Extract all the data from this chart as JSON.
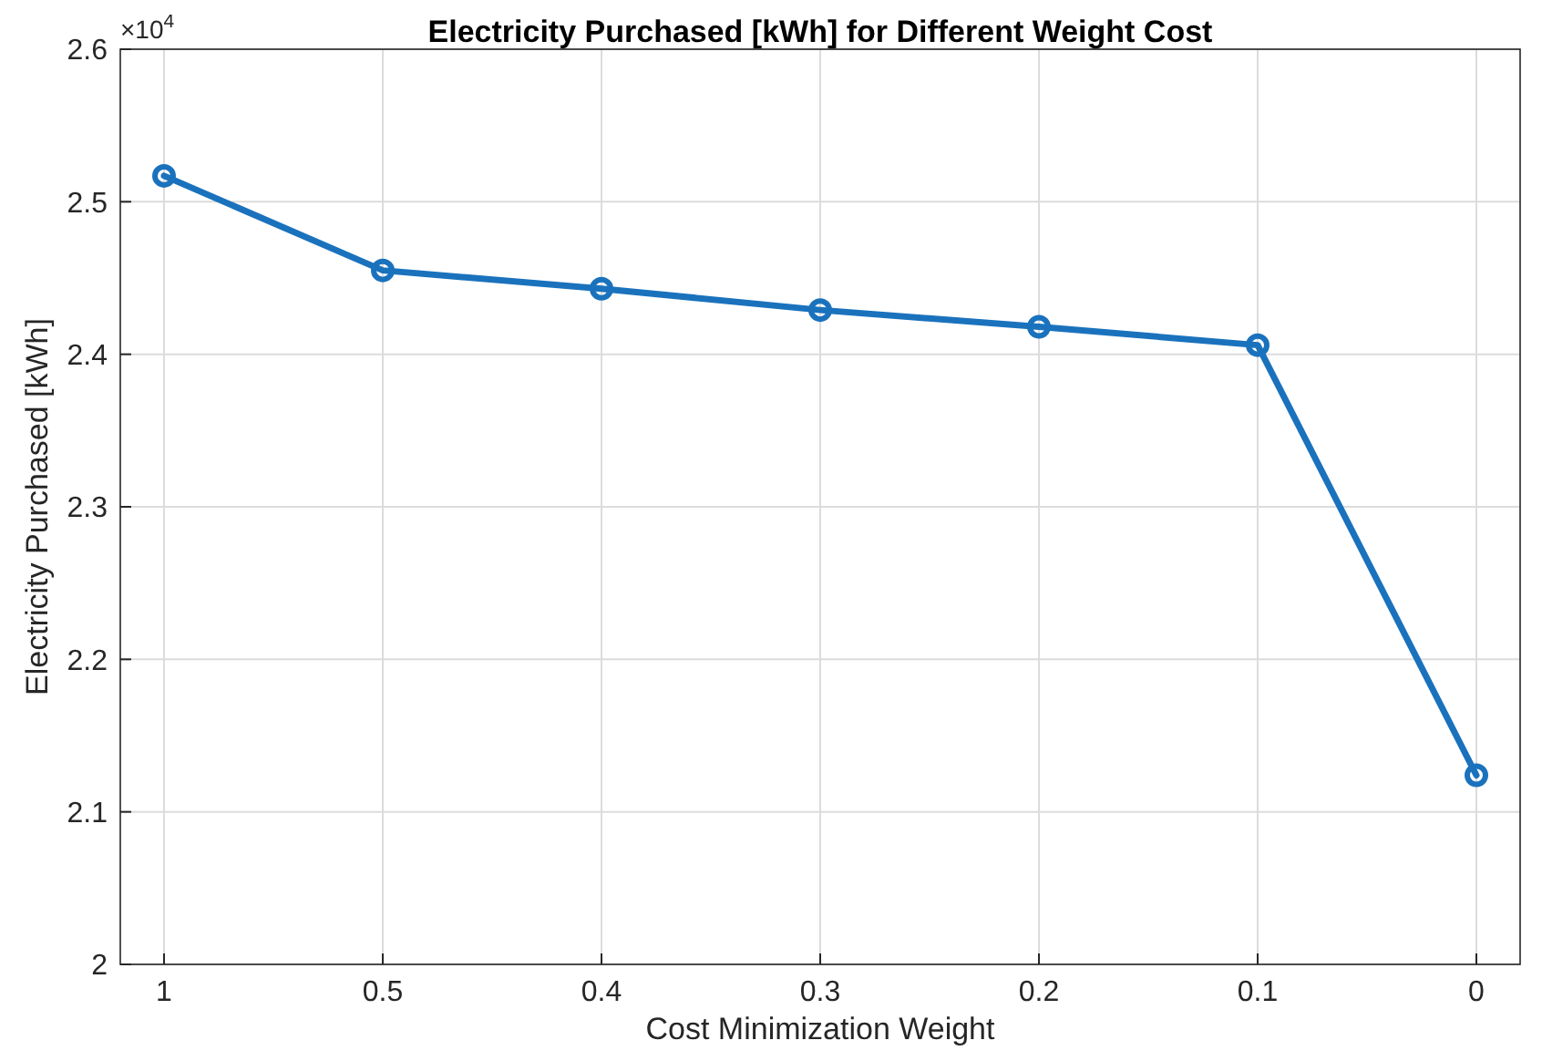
{
  "chart_data": {
    "type": "line",
    "title": "Electricity Purchased [kWh] for Different Weight Cost",
    "xlabel": "Cost Minimization Weight",
    "ylabel": "Electricity Purchased [kWh]",
    "categories": [
      "1",
      "0.5",
      "0.4",
      "0.3",
      "0.2",
      "0.1",
      "0"
    ],
    "series": [
      {
        "color": "#1a72bd",
        "values": [
          2.517,
          2.455,
          2.443,
          2.429,
          2.418,
          2.406,
          2.124
        ]
      }
    ],
    "ylim": [
      2,
      2.6
    ],
    "yticks": [
      2,
      2.1,
      2.2,
      2.3,
      2.4,
      2.5,
      2.6
    ],
    "annotations": [
      "×10$^{4}$"
    ],
    "grid": true,
    "marker": "circle",
    "line_style": "solid"
  }
}
